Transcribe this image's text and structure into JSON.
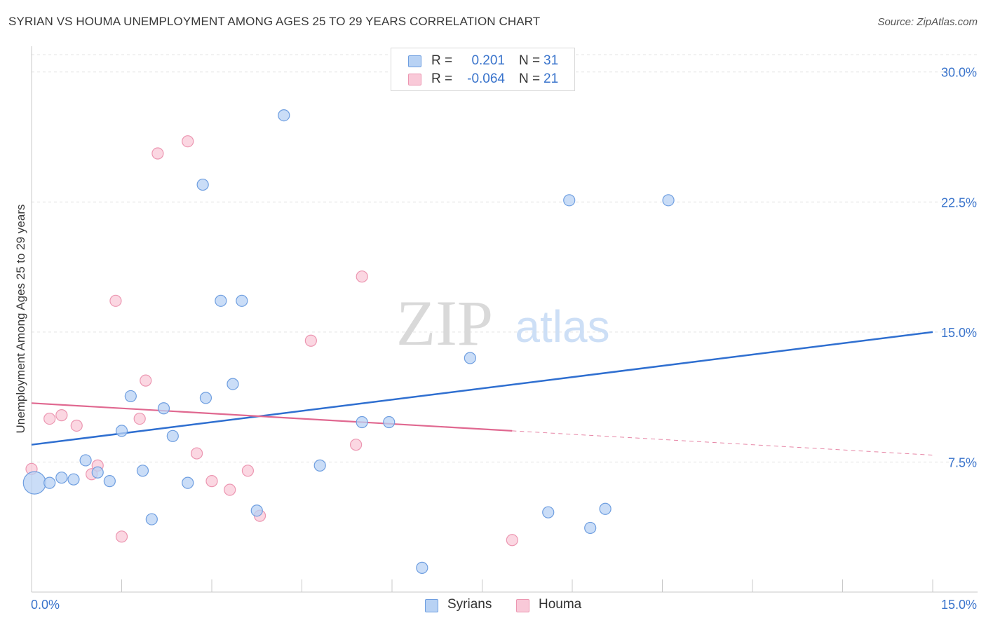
{
  "header": {
    "title": "SYRIAN VS HOUMA UNEMPLOYMENT AMONG AGES 25 TO 29 YEARS CORRELATION CHART",
    "source": "Source: ZipAtlas.com"
  },
  "watermark": {
    "zip": "ZIP",
    "atlas": "atlas"
  },
  "legend": {
    "rows": [
      {
        "r_label": "R =",
        "r_value": "0.201",
        "n_label": "N =",
        "n_value": "31"
      },
      {
        "r_label": "R =",
        "r_value": "-0.064",
        "n_label": "N =",
        "n_value": "21"
      }
    ]
  },
  "bottom_legend": {
    "syrians": "Syrians",
    "houma": "Houma"
  },
  "colors": {
    "syrians_fill": "#b8d2f4",
    "syrians_stroke": "#6e9ee0",
    "syrians_line": "#2f6fd0",
    "houma_fill": "#f9c9d8",
    "houma_stroke": "#ec96b1",
    "houma_line": "#e06890",
    "tick_label": "#3a74cc"
  },
  "chart_data": {
    "type": "scatter",
    "title": "SYRIAN VS HOUMA UNEMPLOYMENT AMONG AGES 25 TO 29 YEARS CORRELATION CHART",
    "xlabel": "",
    "ylabel": "Unemployment Among Ages 25 to 29 years",
    "xlim": [
      0,
      15
    ],
    "ylim": [
      0,
      31
    ],
    "x_tick_labels": [
      "0.0%",
      "15.0%"
    ],
    "y_ticks": [
      7.5,
      15.0,
      22.5,
      30.0
    ],
    "y_tick_labels": [
      "7.5%",
      "15.0%",
      "22.5%",
      "30.0%"
    ],
    "grid": true,
    "legend_position": "top-center",
    "series": [
      {
        "name": "Syrians",
        "r": 0.201,
        "n": 31,
        "points": [
          [
            0.05,
            6.3
          ],
          [
            0.3,
            6.3
          ],
          [
            0.5,
            6.6
          ],
          [
            0.7,
            6.5
          ],
          [
            0.9,
            7.6
          ],
          [
            1.1,
            6.9
          ],
          [
            1.3,
            6.4
          ],
          [
            1.5,
            9.3
          ],
          [
            1.65,
            11.3
          ],
          [
            1.85,
            7.0
          ],
          [
            2.0,
            4.2
          ],
          [
            2.2,
            10.6
          ],
          [
            2.35,
            9.0
          ],
          [
            2.6,
            6.3
          ],
          [
            2.85,
            23.5
          ],
          [
            2.9,
            11.2
          ],
          [
            3.15,
            16.8
          ],
          [
            3.35,
            12.0
          ],
          [
            3.5,
            16.8
          ],
          [
            3.75,
            4.7
          ],
          [
            4.2,
            27.5
          ],
          [
            4.8,
            7.3
          ],
          [
            5.5,
            9.8
          ],
          [
            5.95,
            9.8
          ],
          [
            6.5,
            1.4
          ],
          [
            7.3,
            13.5
          ],
          [
            8.6,
            4.6
          ],
          [
            8.95,
            22.6
          ],
          [
            9.3,
            3.7
          ],
          [
            9.55,
            4.8
          ],
          [
            10.6,
            22.6
          ]
        ],
        "trend": {
          "x0": 0,
          "y0": 8.5,
          "x1": 15,
          "y1": 15.0
        }
      },
      {
        "name": "Houma",
        "r": -0.064,
        "n": 21,
        "points": [
          [
            0.0,
            7.1
          ],
          [
            0.3,
            10.0
          ],
          [
            0.5,
            10.2
          ],
          [
            0.75,
            9.6
          ],
          [
            1.0,
            6.8
          ],
          [
            1.1,
            7.3
          ],
          [
            1.4,
            16.8
          ],
          [
            1.5,
            3.2
          ],
          [
            1.8,
            10.0
          ],
          [
            1.9,
            12.2
          ],
          [
            2.1,
            25.3
          ],
          [
            2.6,
            26.0
          ],
          [
            2.75,
            8.0
          ],
          [
            3.0,
            6.4
          ],
          [
            3.3,
            5.9
          ],
          [
            3.6,
            7.0
          ],
          [
            3.8,
            4.4
          ],
          [
            4.65,
            14.5
          ],
          [
            5.4,
            8.5
          ],
          [
            5.5,
            18.2
          ],
          [
            8.0,
            3.0
          ]
        ],
        "trend": {
          "x0": 0,
          "y0": 10.9,
          "x1": 15,
          "y1": 7.9,
          "solid_until": 8.0
        }
      }
    ]
  }
}
